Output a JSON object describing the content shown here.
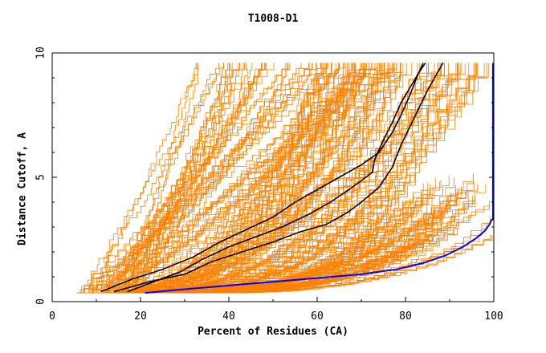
{
  "chart_data": {
    "type": "line",
    "title": "T1008-D1",
    "xlabel": "Percent of Residues (CA)",
    "ylabel": "Distance Cutoff, A",
    "xlim": [
      0,
      100
    ],
    "ylim": [
      0,
      10
    ],
    "x_ticks": [
      "0",
      "20",
      "40",
      "60",
      "80",
      "100"
    ],
    "y_ticks": [
      "0",
      "5",
      "10"
    ],
    "grid": false,
    "legend": "none",
    "colors": {
      "models": "#ff8000",
      "highlight": "#000000",
      "reference": "#0000ff"
    },
    "highlighted_series": [
      {
        "x": [
          11,
          18,
          25,
          32,
          38,
          44,
          50,
          55,
          60,
          65,
          70,
          74,
          77,
          79,
          81,
          82.5,
          84
        ],
        "y": [
          0.4,
          0.9,
          1.3,
          1.8,
          2.4,
          2.9,
          3.4,
          4.0,
          4.5,
          5.0,
          5.5,
          6.0,
          6.8,
          7.5,
          8.3,
          9.0,
          9.6
        ]
      },
      {
        "x": [
          17,
          23,
          29,
          34,
          40,
          46,
          52,
          58,
          63,
          68,
          72.5,
          73,
          75,
          77,
          79,
          81,
          83,
          84.5
        ],
        "y": [
          0.4,
          0.8,
          1.2,
          1.7,
          2.2,
          2.6,
          3.0,
          3.5,
          4.0,
          4.6,
          5.2,
          5.7,
          6.5,
          7.2,
          8.0,
          8.6,
          9.2,
          9.6
        ]
      },
      {
        "x": [
          14,
          22,
          30,
          36,
          43,
          50,
          56,
          62,
          67,
          70,
          74,
          77,
          79,
          82,
          85,
          88.5
        ],
        "y": [
          0.4,
          0.8,
          1.1,
          1.6,
          2.0,
          2.4,
          2.8,
          3.1,
          3.6,
          4.0,
          4.6,
          5.4,
          6.3,
          7.4,
          8.5,
          9.6
        ]
      }
    ],
    "reference_series": {
      "x": [
        21,
        30,
        40,
        50,
        60,
        70,
        78,
        84,
        89,
        93,
        96,
        98,
        99,
        99.5,
        99.8,
        99.8
      ],
      "y": [
        0.35,
        0.5,
        0.65,
        0.8,
        0.95,
        1.1,
        1.3,
        1.55,
        1.85,
        2.2,
        2.55,
        2.85,
        3.1,
        3.3,
        3.3,
        9.6
      ]
    },
    "model_series_groups": [
      {
        "name": "steep",
        "count": 55,
        "x_start": [
          5.5,
          18
        ],
        "x_end": [
          30,
          78
        ],
        "shape": "linear"
      },
      {
        "name": "mid",
        "count": 80,
        "x_start": [
          9,
          24
        ],
        "x_end": [
          60,
          99
        ],
        "shape": "convex"
      },
      {
        "name": "flat",
        "count": 75,
        "x_start": [
          10,
          26
        ],
        "x_end": [
          72,
          99.5
        ],
        "shape": "low"
      }
    ]
  }
}
